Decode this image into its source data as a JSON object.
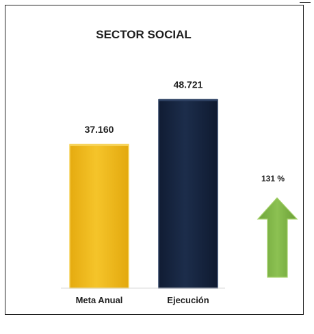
{
  "chart_data": {
    "type": "bar",
    "title": "SECTOR SOCIAL",
    "categories": [
      "Meta Anual",
      "Ejecución"
    ],
    "values": [
      37160,
      48721
    ],
    "value_labels": [
      "37.160",
      "48.721"
    ],
    "ylim": [
      0,
      60000
    ],
    "grid": false,
    "colors": {
      "bar_fill": [
        "#f2bd1d",
        "#16253f"
      ],
      "bar_edge": [
        "#f7d45b",
        "#2f4264"
      ],
      "arrow_fill": "#7cb342",
      "arrow_edge": "#a4d06a"
    },
    "indicator": {
      "label": "131 %",
      "icon": "up-arrow-icon",
      "direction": "up"
    }
  }
}
